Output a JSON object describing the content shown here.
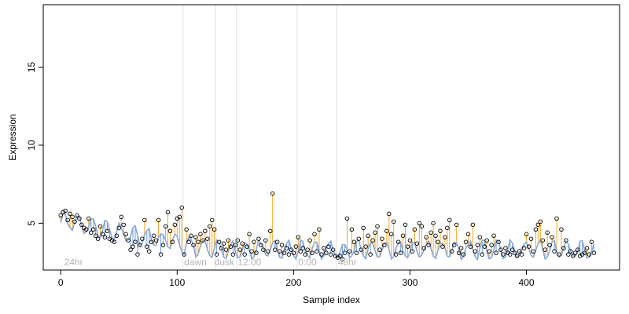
{
  "chart_data": {
    "type": "scatter",
    "xlabel": "Sample index",
    "ylabel": "Expression",
    "xlim": [
      -15,
      480
    ],
    "ylim": [
      2,
      19
    ],
    "xticks": [
      0,
      100,
      200,
      300,
      400
    ],
    "yticks": [
      5,
      10,
      15
    ],
    "region_labels": [
      "24hr",
      "dawn",
      "dusk",
      "12:00",
      "0:00",
      "48hr"
    ],
    "region_label_x": [
      3,
      106,
      132,
      152,
      204,
      238
    ],
    "region_boundaries": [
      105,
      133,
      151,
      203,
      237
    ],
    "colors": {
      "above": "#f5a623",
      "below": "#6f9fe0",
      "baseline": "#8aa8d8",
      "points": "#000000",
      "vlines": "#e0e0e0"
    },
    "baseline_model": {
      "start": 5.2,
      "drop_per_sample": 0.015,
      "min_level": 3.3,
      "wave_amplitude": 0.55,
      "wave_period": 12,
      "noise": 0.15
    },
    "points": [
      [
        0,
        5.5
      ],
      [
        2,
        5.7
      ],
      [
        4,
        5.8
      ],
      [
        6,
        5.2
      ],
      [
        8,
        5.6
      ],
      [
        10,
        5.4
      ],
      [
        12,
        5.1
      ],
      [
        14,
        5.5
      ],
      [
        16,
        5.3
      ],
      [
        18,
        4.9
      ],
      [
        20,
        4.7
      ],
      [
        22,
        4.6
      ],
      [
        24,
        5.3
      ],
      [
        26,
        4.4
      ],
      [
        28,
        4.6
      ],
      [
        30,
        4.2
      ],
      [
        32,
        4.0
      ],
      [
        34,
        4.8
      ],
      [
        36,
        4.3
      ],
      [
        38,
        4.1
      ],
      [
        40,
        4.5
      ],
      [
        42,
        4.0
      ],
      [
        44,
        3.9
      ],
      [
        46,
        3.8
      ],
      [
        48,
        4.2
      ],
      [
        50,
        4.7
      ],
      [
        52,
        5.4
      ],
      [
        54,
        4.9
      ],
      [
        56,
        4.3
      ],
      [
        58,
        3.9
      ],
      [
        60,
        3.3
      ],
      [
        62,
        3.5
      ],
      [
        64,
        3.8
      ],
      [
        66,
        3.0
      ],
      [
        68,
        3.6
      ],
      [
        70,
        4.0
      ],
      [
        72,
        5.2
      ],
      [
        74,
        3.5
      ],
      [
        76,
        3.2
      ],
      [
        78,
        3.8
      ],
      [
        80,
        4.2
      ],
      [
        82,
        3.9
      ],
      [
        84,
        5.2
      ],
      [
        86,
        3.0
      ],
      [
        88,
        3.6
      ],
      [
        90,
        4.8
      ],
      [
        92,
        5.7
      ],
      [
        94,
        4.5
      ],
      [
        96,
        3.8
      ],
      [
        98,
        4.9
      ],
      [
        100,
        5.3
      ],
      [
        102,
        5.4
      ],
      [
        104,
        6.0
      ],
      [
        106,
        3.0
      ],
      [
        108,
        4.6
      ],
      [
        110,
        3.8
      ],
      [
        112,
        4.2
      ],
      [
        114,
        3.6
      ],
      [
        116,
        4.1
      ],
      [
        118,
        3.8
      ],
      [
        120,
        4.3
      ],
      [
        122,
        3.9
      ],
      [
        124,
        4.5
      ],
      [
        126,
        4.0
      ],
      [
        128,
        4.8
      ],
      [
        130,
        5.2
      ],
      [
        132,
        4.6
      ],
      [
        134,
        3.0
      ],
      [
        136,
        3.8
      ],
      [
        138,
        3.4
      ],
      [
        140,
        3.7
      ],
      [
        142,
        3.3
      ],
      [
        144,
        3.9
      ],
      [
        146,
        3.5
      ],
      [
        148,
        3.0
      ],
      [
        150,
        3.6
      ],
      [
        152,
        3.9
      ],
      [
        154,
        3.3
      ],
      [
        156,
        3.7
      ],
      [
        158,
        3.0
      ],
      [
        160,
        3.5
      ],
      [
        162,
        4.3
      ],
      [
        164,
        3.2
      ],
      [
        166,
        3.8
      ],
      [
        168,
        3.1
      ],
      [
        170,
        4.0
      ],
      [
        172,
        3.6
      ],
      [
        174,
        3.3
      ],
      [
        176,
        3.9
      ],
      [
        178,
        3.2
      ],
      [
        180,
        4.5
      ],
      [
        182,
        6.9
      ],
      [
        184,
        3.3
      ],
      [
        186,
        3.8
      ],
      [
        188,
        3.2
      ],
      [
        190,
        3.6
      ],
      [
        192,
        3.1
      ],
      [
        194,
        3.4
      ],
      [
        196,
        3.0
      ],
      [
        198,
        3.3
      ],
      [
        200,
        3.1
      ],
      [
        202,
        3.5
      ],
      [
        204,
        4.1
      ],
      [
        206,
        3.2
      ],
      [
        208,
        3.4
      ],
      [
        210,
        3.0
      ],
      [
        212,
        3.3
      ],
      [
        214,
        3.9
      ],
      [
        216,
        3.1
      ],
      [
        218,
        4.3
      ],
      [
        220,
        3.2
      ],
      [
        222,
        4.6
      ],
      [
        224,
        3.0
      ],
      [
        226,
        3.4
      ],
      [
        228,
        3.1
      ],
      [
        230,
        3.5
      ],
      [
        232,
        3.0
      ],
      [
        234,
        3.3
      ],
      [
        236,
        2.9
      ],
      [
        238,
        2.8
      ],
      [
        240,
        2.9
      ],
      [
        242,
        2.7
      ],
      [
        244,
        3.1
      ],
      [
        246,
        5.3
      ],
      [
        248,
        3.2
      ],
      [
        250,
        4.6
      ],
      [
        252,
        3.8
      ],
      [
        254,
        3.1
      ],
      [
        256,
        4.0
      ],
      [
        258,
        3.3
      ],
      [
        260,
        4.7
      ],
      [
        262,
        3.5
      ],
      [
        264,
        4.2
      ],
      [
        266,
        3.0
      ],
      [
        268,
        3.9
      ],
      [
        270,
        4.4
      ],
      [
        272,
        4.8
      ],
      [
        274,
        3.3
      ],
      [
        276,
        4.0
      ],
      [
        278,
        3.6
      ],
      [
        280,
        4.5
      ],
      [
        282,
        5.6
      ],
      [
        284,
        4.3
      ],
      [
        286,
        5.1
      ],
      [
        288,
        3.0
      ],
      [
        290,
        3.8
      ],
      [
        292,
        3.1
      ],
      [
        294,
        4.2
      ],
      [
        296,
        4.9
      ],
      [
        298,
        3.5
      ],
      [
        300,
        3.9
      ],
      [
        302,
        3.2
      ],
      [
        304,
        4.6
      ],
      [
        306,
        3.7
      ],
      [
        308,
        5.0
      ],
      [
        310,
        4.8
      ],
      [
        312,
        3.4
      ],
      [
        314,
        4.1
      ],
      [
        316,
        3.6
      ],
      [
        318,
        4.4
      ],
      [
        320,
        5.0
      ],
      [
        322,
        4.2
      ],
      [
        324,
        3.8
      ],
      [
        326,
        4.5
      ],
      [
        328,
        3.5
      ],
      [
        330,
        4.1
      ],
      [
        332,
        4.7
      ],
      [
        334,
        5.2
      ],
      [
        336,
        3.2
      ],
      [
        338,
        3.6
      ],
      [
        340,
        4.9
      ],
      [
        342,
        3.1
      ],
      [
        344,
        3.4
      ],
      [
        346,
        3.0
      ],
      [
        348,
        3.8
      ],
      [
        350,
        4.3
      ],
      [
        352,
        3.5
      ],
      [
        354,
        4.9
      ],
      [
        356,
        3.2
      ],
      [
        358,
        3.6
      ],
      [
        360,
        4.1
      ],
      [
        362,
        3.0
      ],
      [
        364,
        3.5
      ],
      [
        366,
        3.9
      ],
      [
        368,
        3.2
      ],
      [
        370,
        3.6
      ],
      [
        372,
        4.2
      ],
      [
        374,
        3.1
      ],
      [
        376,
        3.8
      ],
      [
        378,
        3.3
      ],
      [
        380,
        3.0
      ],
      [
        382,
        3.4
      ],
      [
        384,
        3.1
      ],
      [
        386,
        3.0
      ],
      [
        388,
        3.3
      ],
      [
        390,
        3.1
      ],
      [
        392,
        2.9
      ],
      [
        394,
        3.2
      ],
      [
        396,
        3.0
      ],
      [
        398,
        3.4
      ],
      [
        400,
        4.3
      ],
      [
        402,
        3.5
      ],
      [
        404,
        4.0
      ],
      [
        406,
        3.2
      ],
      [
        408,
        4.6
      ],
      [
        410,
        4.9
      ],
      [
        412,
        5.1
      ],
      [
        414,
        3.9
      ],
      [
        416,
        3.3
      ],
      [
        418,
        4.4
      ],
      [
        420,
        3.6
      ],
      [
        422,
        4.1
      ],
      [
        424,
        3.2
      ],
      [
        426,
        5.3
      ],
      [
        428,
        3.0
      ],
      [
        430,
        4.6
      ],
      [
        432,
        3.4
      ],
      [
        434,
        3.9
      ],
      [
        436,
        3.0
      ],
      [
        438,
        3.2
      ],
      [
        440,
        2.9
      ],
      [
        442,
        3.1
      ],
      [
        444,
        3.3
      ],
      [
        446,
        2.9
      ],
      [
        448,
        3.0
      ],
      [
        450,
        3.1
      ],
      [
        452,
        3.4
      ],
      [
        454,
        3.0
      ],
      [
        456,
        3.8
      ],
      [
        458,
        3.1
      ]
    ]
  }
}
